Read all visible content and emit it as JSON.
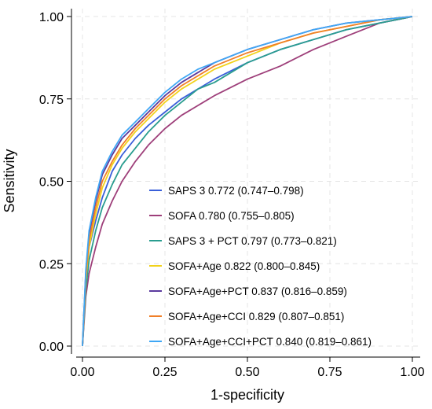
{
  "chart_data": {
    "type": "line",
    "title": "",
    "xlabel": "1-specificity",
    "ylabel": "Sensitivity",
    "xlim": [
      0,
      1
    ],
    "ylim": [
      0,
      1
    ],
    "x_ticks": [
      "0.00",
      "0.25",
      "0.50",
      "0.75",
      "1.00"
    ],
    "y_ticks": [
      "0.00",
      "0.25",
      "0.50",
      "0.75",
      "1.00"
    ],
    "x_tick_values": [
      0,
      0.25,
      0.5,
      0.75,
      1
    ],
    "y_tick_values": [
      0,
      0.25,
      0.5,
      0.75,
      1
    ],
    "grid": true,
    "reference_diagonal": false,
    "legend_position": "bottom-right",
    "series": [
      {
        "name": "SAPS 3 0.772 (0.747–0.798)",
        "color": "#3a5fd9",
        "x": [
          0,
          0.01,
          0.02,
          0.04,
          0.06,
          0.09,
          0.12,
          0.16,
          0.2,
          0.25,
          0.3,
          0.35,
          0.4,
          0.5,
          0.6,
          0.7,
          0.8,
          0.9,
          1
        ],
        "y": [
          0,
          0.18,
          0.3,
          0.38,
          0.45,
          0.53,
          0.58,
          0.63,
          0.67,
          0.71,
          0.75,
          0.78,
          0.81,
          0.86,
          0.9,
          0.93,
          0.96,
          0.98,
          1
        ]
      },
      {
        "name": "SOFA 0.780 (0.755–0.805)",
        "color": "#9e3f7a",
        "x": [
          0,
          0.01,
          0.02,
          0.04,
          0.06,
          0.09,
          0.12,
          0.16,
          0.2,
          0.25,
          0.3,
          0.35,
          0.4,
          0.5,
          0.6,
          0.7,
          0.8,
          0.9,
          1
        ],
        "y": [
          0,
          0.15,
          0.22,
          0.3,
          0.37,
          0.44,
          0.5,
          0.56,
          0.61,
          0.66,
          0.7,
          0.73,
          0.76,
          0.81,
          0.85,
          0.9,
          0.94,
          0.98,
          1
        ]
      },
      {
        "name": "SAPS 3 + PCT 0.797 (0.773–0.821)",
        "color": "#2a9d8f",
        "x": [
          0,
          0.01,
          0.02,
          0.04,
          0.06,
          0.09,
          0.12,
          0.16,
          0.2,
          0.25,
          0.3,
          0.35,
          0.4,
          0.5,
          0.6,
          0.7,
          0.8,
          0.9,
          1
        ],
        "y": [
          0,
          0.17,
          0.26,
          0.35,
          0.42,
          0.49,
          0.55,
          0.6,
          0.65,
          0.7,
          0.74,
          0.78,
          0.8,
          0.86,
          0.9,
          0.93,
          0.96,
          0.98,
          1
        ]
      },
      {
        "name": "SOFA+Age 0.822 (0.800–0.845)",
        "color": "#f2d21b",
        "x": [
          0,
          0.01,
          0.02,
          0.04,
          0.06,
          0.09,
          0.12,
          0.16,
          0.2,
          0.25,
          0.3,
          0.35,
          0.4,
          0.5,
          0.6,
          0.7,
          0.8,
          0.9,
          1
        ],
        "y": [
          0,
          0.2,
          0.3,
          0.4,
          0.48,
          0.55,
          0.6,
          0.65,
          0.69,
          0.74,
          0.78,
          0.81,
          0.84,
          0.88,
          0.92,
          0.95,
          0.97,
          0.99,
          1
        ]
      },
      {
        "name": "SOFA+Age+PCT 0.837 (0.816–0.859)",
        "color": "#5b3a9e",
        "x": [
          0,
          0.01,
          0.02,
          0.04,
          0.06,
          0.09,
          0.12,
          0.16,
          0.2,
          0.25,
          0.3,
          0.35,
          0.4,
          0.5,
          0.6,
          0.7,
          0.8,
          0.9,
          1
        ],
        "y": [
          0,
          0.22,
          0.34,
          0.44,
          0.52,
          0.58,
          0.63,
          0.67,
          0.71,
          0.76,
          0.8,
          0.83,
          0.86,
          0.9,
          0.93,
          0.96,
          0.98,
          0.99,
          1
        ]
      },
      {
        "name": "SOFA+Age+CCI 0.829 (0.807–0.851)",
        "color": "#f07f28",
        "x": [
          0,
          0.01,
          0.02,
          0.04,
          0.06,
          0.09,
          0.12,
          0.16,
          0.2,
          0.25,
          0.3,
          0.35,
          0.4,
          0.5,
          0.6,
          0.7,
          0.8,
          0.9,
          1
        ],
        "y": [
          0,
          0.21,
          0.32,
          0.42,
          0.5,
          0.56,
          0.61,
          0.66,
          0.7,
          0.75,
          0.79,
          0.82,
          0.85,
          0.89,
          0.92,
          0.95,
          0.97,
          0.99,
          1
        ]
      },
      {
        "name": "SOFA+Age+CCI+PCT 0.840 (0.819–0.861)",
        "color": "#3fa7f5",
        "x": [
          0,
          0.01,
          0.02,
          0.04,
          0.06,
          0.09,
          0.12,
          0.16,
          0.2,
          0.25,
          0.3,
          0.35,
          0.4,
          0.5,
          0.6,
          0.7,
          0.8,
          0.9,
          1
        ],
        "y": [
          0,
          0.23,
          0.35,
          0.45,
          0.53,
          0.59,
          0.64,
          0.68,
          0.72,
          0.77,
          0.81,
          0.84,
          0.86,
          0.9,
          0.93,
          0.96,
          0.98,
          0.99,
          1
        ]
      }
    ]
  }
}
